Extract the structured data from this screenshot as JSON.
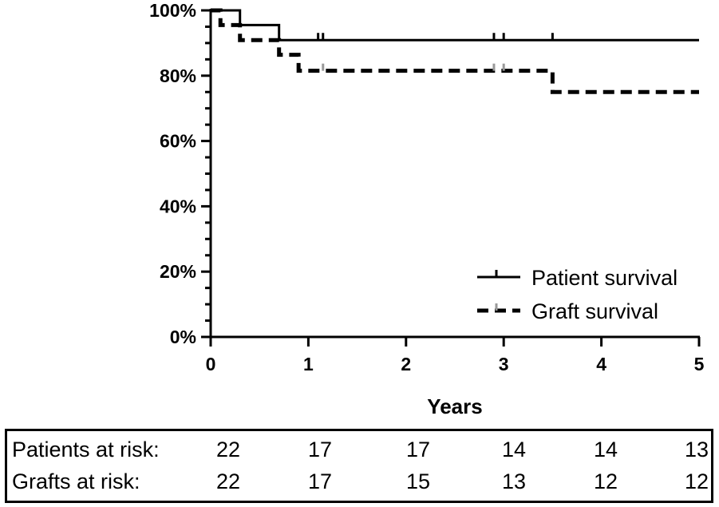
{
  "chart_data": {
    "type": "line",
    "title": "",
    "xlabel": "Years",
    "ylabel": "",
    "xlim": [
      0,
      5
    ],
    "ylim": [
      0,
      100
    ],
    "x_ticks": [
      "0",
      "1",
      "2",
      "3",
      "4",
      "5"
    ],
    "y_ticks": [
      "0%",
      "20%",
      "40%",
      "60%",
      "80%",
      "100%"
    ],
    "step": true,
    "legend_position": "bottom-right",
    "series": [
      {
        "name": "Patient survival",
        "style": "solid",
        "color": "#000000",
        "x": [
          0,
          0.3,
          0.7,
          5
        ],
        "y": [
          100,
          95.5,
          90.9,
          90.9
        ],
        "censored_x": [
          1.1,
          1.15,
          2.9,
          3.0,
          3.5
        ]
      },
      {
        "name": "Graft survival",
        "style": "dashed",
        "color": "#000000",
        "x": [
          0,
          0.1,
          0.3,
          0.7,
          0.9,
          3.5,
          5
        ],
        "y": [
          100,
          95.5,
          90.9,
          86.4,
          81.5,
          75.0,
          75.0
        ],
        "censored_x": [
          1.15,
          2.9,
          3.0
        ],
        "censor_color": "#999999"
      }
    ]
  },
  "risk_table": {
    "rows": [
      {
        "label": "Patients at risk:",
        "values": [
          "22",
          "17",
          "17",
          "14",
          "14",
          "13"
        ]
      },
      {
        "label": "Grafts at risk:",
        "values": [
          "22",
          "17",
          "15",
          "13",
          "12",
          "12"
        ]
      }
    ]
  }
}
